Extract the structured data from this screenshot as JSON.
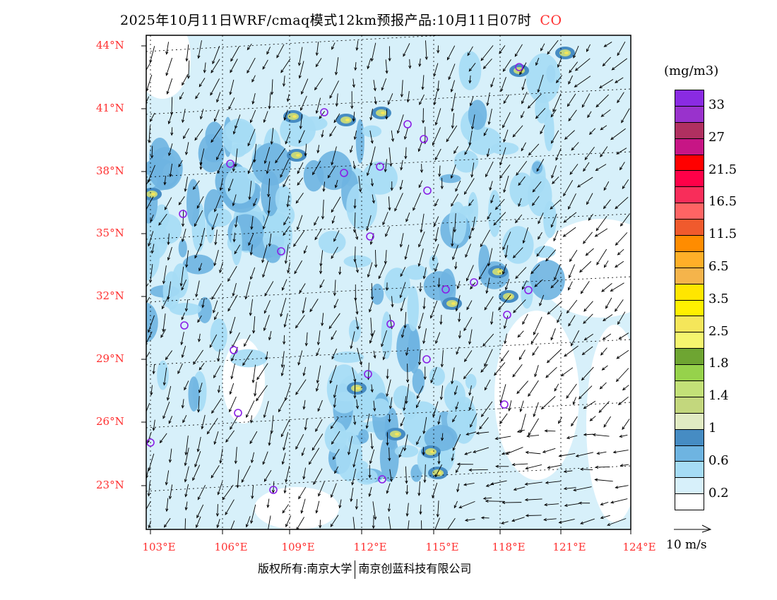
{
  "title": {
    "main": "2025年10月11日WRF/cmaq模式12km预报产品:10月11日07时",
    "species": "CO"
  },
  "lat_labels": [
    "44°N",
    "41°N",
    "38°N",
    "35°N",
    "32°N",
    "29°N",
    "26°N",
    "23°N"
  ],
  "lon_labels": [
    "103°E",
    "106°E",
    "109°E",
    "112°E",
    "115°E",
    "118°E",
    "121°E",
    "124°E"
  ],
  "legend": {
    "unit": "(mg/m3)",
    "labels": [
      "33",
      "27",
      "21.5",
      "16.5",
      "11.5",
      "6.5",
      "3.5",
      "2.5",
      "1.8",
      "1.4",
      "1",
      "0.6",
      "0.2"
    ],
    "colors": [
      "#8a2be2",
      "#9932cc",
      "#b03060",
      "#c71585",
      "#ff0000",
      "#ff0048",
      "#f82d5a",
      "#ff6464",
      "#f05a2d",
      "#ff8c00",
      "#ffaf28",
      "#f5b44b",
      "#ffe600",
      "#fff000",
      "#f5e65a",
      "#f5f56e",
      "#6ea532",
      "#96d24b",
      "#c3e178",
      "#c3d77d",
      "#e1ebc3",
      "#468cc3",
      "#6eb4e1",
      "#a5dcf5",
      "#d7f0fa",
      "#ffffff"
    ],
    "wind_ref": "10 m/s"
  },
  "copyright": {
    "left": "版权所有:南京大学",
    "right": "南京创蓝科技有限公司"
  }
}
